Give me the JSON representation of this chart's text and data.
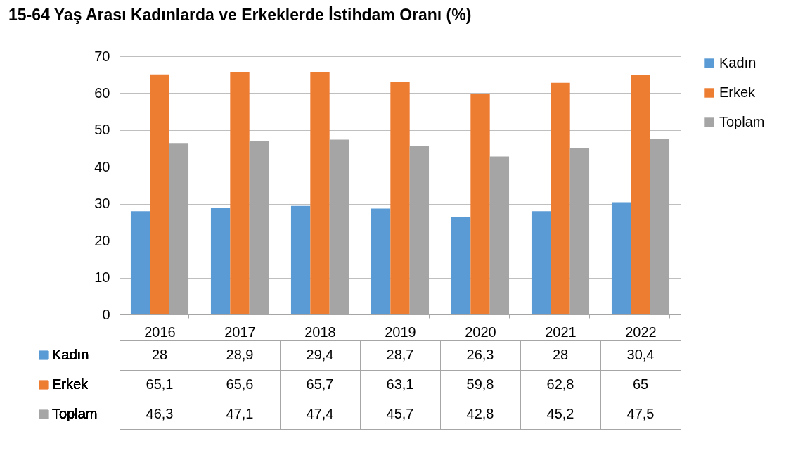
{
  "chart_data": {
    "type": "bar",
    "title": "15-64 Yaş Arası Kadınlarda ve Erkeklerde İstihdam Oranı (%)",
    "categories": [
      "2016",
      "2017",
      "2018",
      "2019",
      "2020",
      "2021",
      "2022"
    ],
    "series": [
      {
        "name": "Kadın",
        "color": "#5b9bd5",
        "values": [
          28,
          28.9,
          29.4,
          28.7,
          26.3,
          28,
          30.4
        ],
        "value_labels": [
          "28",
          "28,9",
          "29,4",
          "28,7",
          "26,3",
          "28",
          "30,4"
        ]
      },
      {
        "name": "Erkek",
        "color": "#ed7d31",
        "values": [
          65.1,
          65.6,
          65.7,
          63.1,
          59.8,
          62.8,
          65
        ],
        "value_labels": [
          "65,1",
          "65,6",
          "65,7",
          "63,1",
          "59,8",
          "62,8",
          "65"
        ]
      },
      {
        "name": "Toplam",
        "color": "#a5a5a5",
        "values": [
          46.3,
          47.1,
          47.4,
          45.7,
          42.8,
          45.2,
          47.5
        ],
        "value_labels": [
          "46,3",
          "47,1",
          "47,4",
          "45,7",
          "42,8",
          "45,2",
          "47,5"
        ]
      }
    ],
    "ylim": [
      0,
      70
    ],
    "yticks": [
      0,
      10,
      20,
      30,
      40,
      50,
      60,
      70
    ],
    "grid": "y",
    "legend": "right"
  }
}
